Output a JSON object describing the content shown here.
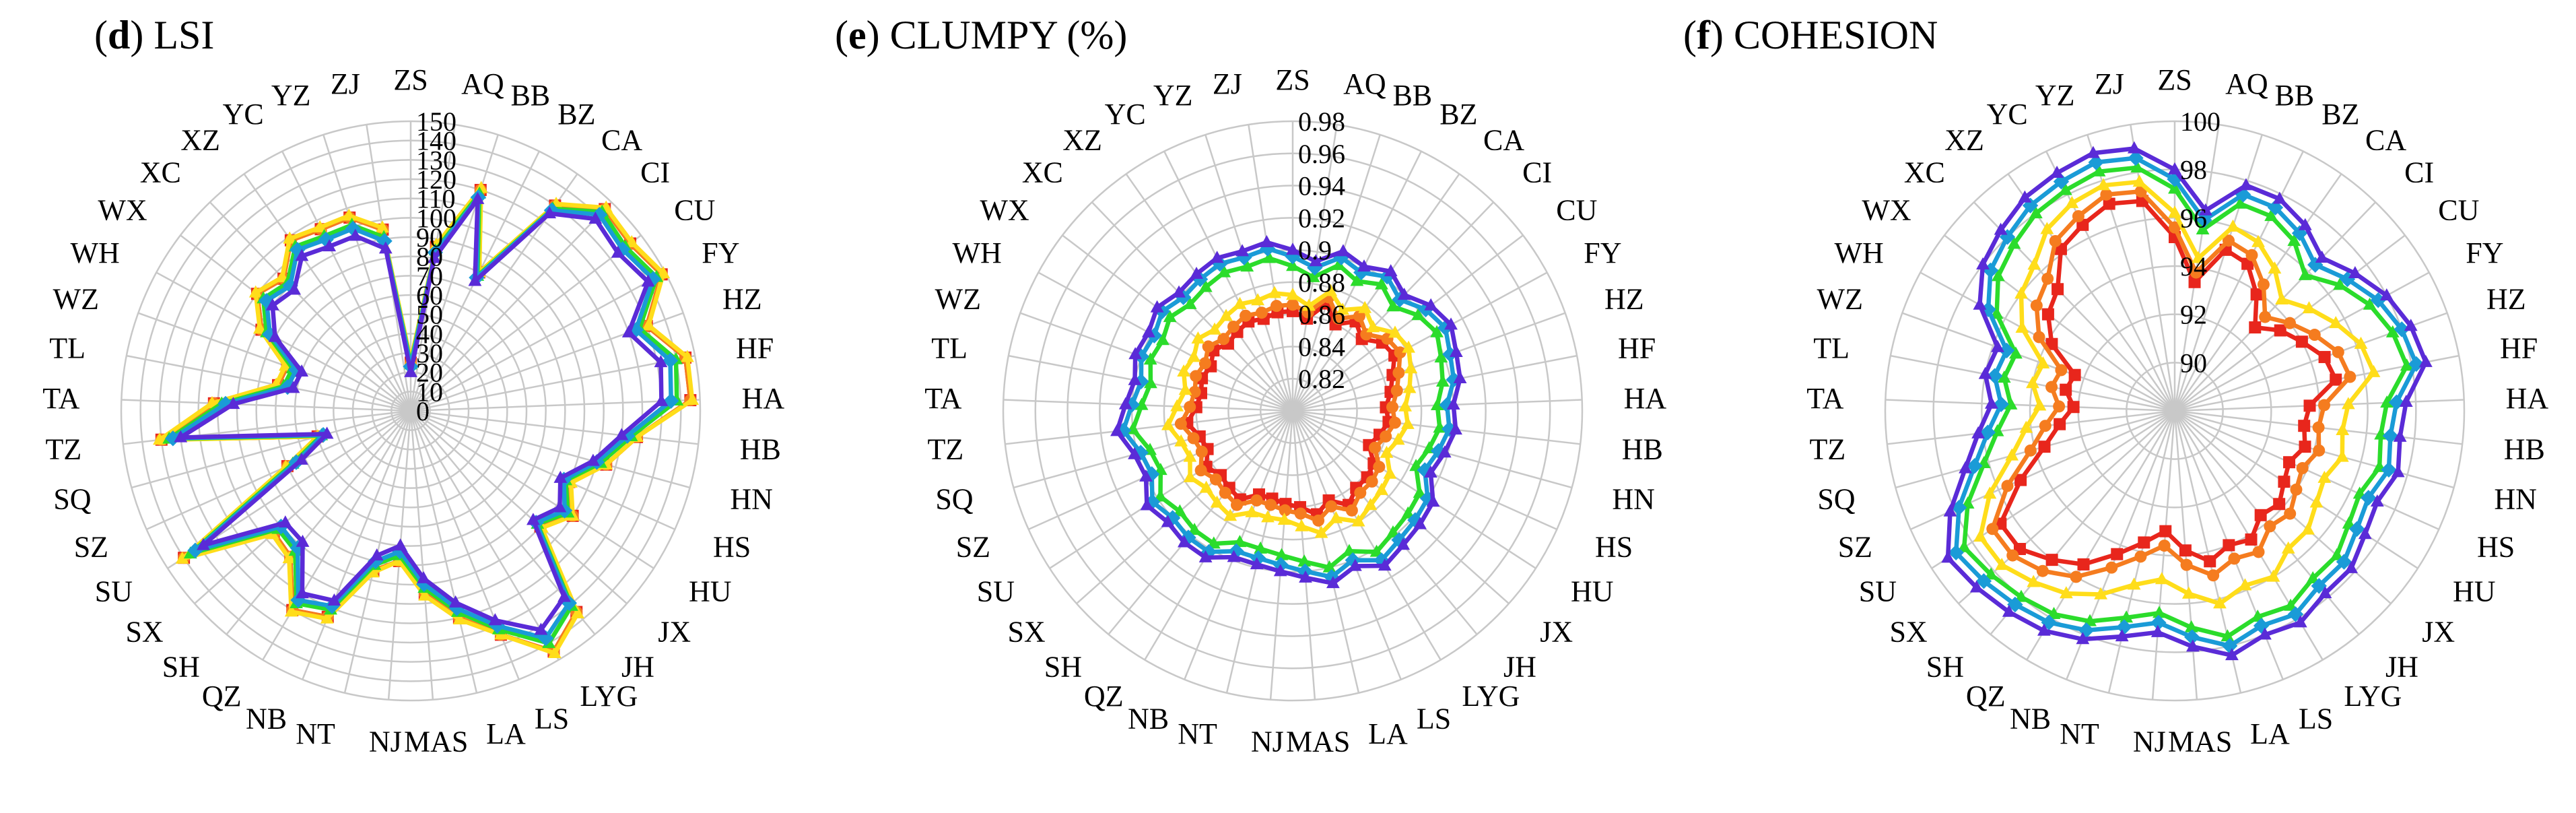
{
  "figure": {
    "title": ""
  },
  "chart_data": [
    {
      "type": "radar",
      "panel_letter": "(d)",
      "title": "LSI",
      "title_bold_part": "d",
      "rlim": [
        0,
        150
      ],
      "ticks": [
        "0",
        "10",
        "20",
        "30",
        "40",
        "50",
        "60",
        "70",
        "80",
        "90",
        "100",
        "110",
        "120",
        "130",
        "140",
        "150"
      ],
      "categories": [
        "ZS",
        "AQ",
        "BB",
        "BZ",
        "CA",
        "CI",
        "CU",
        "FY",
        "HZ",
        "HF",
        "HA",
        "HB",
        "HN",
        "HS",
        "HU",
        "JX",
        "JH",
        "LYG",
        "LS",
        "LA",
        "MAS",
        "NJ",
        "NT",
        "NB",
        "QZ",
        "SH",
        "SX",
        "SU",
        "SZ",
        "SQ",
        "TZ",
        "TA",
        "TL",
        "WZ",
        "WH",
        "WX",
        "XC",
        "XZ",
        "YC",
        "YZ",
        "ZJ"
      ],
      "series": [
        {
          "color": "#e8261c",
          "marker": "square",
          "values": [
            25,
            86,
            120,
            80,
            130,
            145,
            143,
            148,
            130,
            145,
            145,
            118,
            105,
            90,
            100,
            90,
            135,
            145,
            125,
            110,
            95,
            78,
            85,
            115,
            120,
            98,
            95,
            140,
            70,
            50,
            130,
            102,
            70,
            68,
            88,
            100,
            95,
            108,
            105,
            105,
            95
          ]
        },
        {
          "color": "#f57c1f",
          "marker": "circle",
          "values": [
            25,
            86,
            120,
            80,
            130,
            145,
            143,
            148,
            130,
            145,
            145,
            118,
            105,
            90,
            100,
            90,
            135,
            145,
            125,
            110,
            95,
            78,
            85,
            115,
            120,
            98,
            95,
            140,
            70,
            50,
            130,
            102,
            70,
            68,
            88,
            100,
            95,
            108,
            105,
            105,
            95
          ]
        },
        {
          "color": "#ffdd1a",
          "marker": "triangle",
          "values": [
            26,
            87,
            121,
            80,
            131,
            146,
            144,
            149,
            131,
            146,
            146,
            118,
            105,
            91,
            100,
            91,
            136,
            146,
            125,
            111,
            96,
            78,
            86,
            116,
            121,
            99,
            96,
            141,
            71,
            50,
            131,
            103,
            71,
            69,
            89,
            101,
            96,
            109,
            106,
            106,
            96
          ]
        },
        {
          "color": "#2bdc2b",
          "marker": "triangle",
          "values": [
            24,
            84,
            118,
            78,
            128,
            143,
            140,
            145,
            126,
            140,
            138,
            115,
            102,
            88,
            97,
            88,
            131,
            140,
            122,
            107,
            92,
            75,
            82,
            111,
            116,
            94,
            92,
            136,
            67,
            48,
            126,
            98,
            67,
            65,
            85,
            96,
            92,
            104,
            101,
            101,
            91
          ]
        },
        {
          "color": "#1a9bd7",
          "marker": "diamond",
          "values": [
            23,
            83,
            116,
            77,
            127,
            141,
            138,
            143,
            124,
            137,
            135,
            113,
            100,
            87,
            95,
            87,
            129,
            137,
            120,
            105,
            90,
            73,
            80,
            109,
            114,
            92,
            90,
            133,
            65,
            47,
            124,
            96,
            65,
            63,
            83,
            94,
            90,
            102,
            99,
            99,
            89
          ]
        },
        {
          "color": "#5a2bd7",
          "marker": "triangle",
          "values": [
            20,
            80,
            115,
            75,
            125,
            138,
            135,
            140,
            120,
            132,
            130,
            110,
            98,
            85,
            92,
            85,
            125,
            132,
            117,
            102,
            87,
            70,
            77,
            106,
            110,
            88,
            87,
            128,
            62,
            45,
            120,
            92,
            62,
            60,
            80,
            90,
            87,
            98,
            95,
            95,
            85
          ]
        }
      ]
    },
    {
      "type": "radar",
      "panel_letter": "(e)",
      "title": "CLUMPY (%)",
      "title_bold_part": "e",
      "rlim": [
        0.8,
        0.98
      ],
      "ticks": [
        "0.82",
        "0.84",
        "0.86",
        "0.88",
        "0.9",
        "0.92",
        "0.94",
        "0.96",
        "0.98"
      ],
      "categories": [
        "ZS",
        "AQ",
        "BB",
        "BZ",
        "CA",
        "CI",
        "CU",
        "FY",
        "HZ",
        "HF",
        "HA",
        "HB",
        "HN",
        "HS",
        "HU",
        "JX",
        "JH",
        "LYG",
        "LS",
        "LA",
        "MAS",
        "NJ",
        "NT",
        "NB",
        "QZ",
        "SH",
        "SX",
        "SU",
        "SZ",
        "SQ",
        "TZ",
        "TA",
        "TL",
        "WZ",
        "WH",
        "WX",
        "XC",
        "XZ",
        "YC",
        "YZ",
        "ZJ"
      ],
      "series": [
        {
          "color": "#e8261c",
          "marker": "square",
          "values": [
            0.862,
            0.858,
            0.87,
            0.86,
            0.868,
            0.862,
            0.87,
            0.872,
            0.866,
            0.862,
            0.858,
            0.86,
            0.856,
            0.852,
            0.86,
            0.862,
            0.862,
            0.868,
            0.86,
            0.866,
            0.86,
            0.858,
            0.856,
            0.856,
            0.864,
            0.862,
            0.86,
            0.864,
            0.858,
            0.86,
            0.866,
            0.86,
            0.858,
            0.86,
            0.858,
            0.862,
            0.858,
            0.86,
            0.862,
            0.86,
            0.862
          ]
        },
        {
          "color": "#f57c1f",
          "marker": "circle",
          "values": [
            0.866,
            0.862,
            0.874,
            0.864,
            0.872,
            0.866,
            0.874,
            0.876,
            0.87,
            0.866,
            0.862,
            0.864,
            0.86,
            0.856,
            0.864,
            0.866,
            0.866,
            0.872,
            0.864,
            0.87,
            0.864,
            0.862,
            0.86,
            0.86,
            0.868,
            0.866,
            0.864,
            0.868,
            0.862,
            0.864,
            0.87,
            0.864,
            0.862,
            0.864,
            0.862,
            0.866,
            0.862,
            0.864,
            0.866,
            0.864,
            0.866
          ]
        },
        {
          "color": "#ffdd1a",
          "marker": "triangle",
          "values": [
            0.872,
            0.866,
            0.878,
            0.87,
            0.878,
            0.872,
            0.88,
            0.882,
            0.878,
            0.874,
            0.87,
            0.872,
            0.868,
            0.864,
            0.872,
            0.874,
            0.876,
            0.88,
            0.872,
            0.878,
            0.872,
            0.868,
            0.868,
            0.868,
            0.876,
            0.874,
            0.872,
            0.876,
            0.87,
            0.872,
            0.878,
            0.872,
            0.868,
            0.872,
            0.87,
            0.874,
            0.87,
            0.872,
            0.874,
            0.872,
            0.874
          ]
        },
        {
          "color": "#2bdc2b",
          "marker": "triangle",
          "values": [
            0.89,
            0.884,
            0.895,
            0.89,
            0.896,
            0.89,
            0.898,
            0.902,
            0.898,
            0.895,
            0.89,
            0.892,
            0.888,
            0.884,
            0.894,
            0.896,
            0.898,
            0.902,
            0.894,
            0.9,
            0.894,
            0.89,
            0.888,
            0.888,
            0.896,
            0.896,
            0.894,
            0.898,
            0.89,
            0.892,
            0.9,
            0.894,
            0.89,
            0.894,
            0.892,
            0.896,
            0.892,
            0.894,
            0.896,
            0.894,
            0.896
          ]
        },
        {
          "color": "#1a9bd7",
          "marker": "diamond",
          "values": [
            0.896,
            0.89,
            0.9,
            0.896,
            0.902,
            0.896,
            0.904,
            0.908,
            0.904,
            0.902,
            0.896,
            0.898,
            0.894,
            0.89,
            0.9,
            0.902,
            0.904,
            0.908,
            0.9,
            0.906,
            0.9,
            0.896,
            0.894,
            0.894,
            0.902,
            0.902,
            0.9,
            0.904,
            0.896,
            0.898,
            0.906,
            0.9,
            0.896,
            0.9,
            0.898,
            0.902,
            0.898,
            0.9,
            0.902,
            0.9,
            0.902
          ]
        },
        {
          "color": "#5a2bd7",
          "marker": "triangle",
          "values": [
            0.9,
            0.894,
            0.904,
            0.9,
            0.906,
            0.9,
            0.908,
            0.912,
            0.908,
            0.906,
            0.9,
            0.902,
            0.898,
            0.894,
            0.904,
            0.906,
            0.908,
            0.912,
            0.904,
            0.91,
            0.904,
            0.9,
            0.898,
            0.898,
            0.906,
            0.906,
            0.904,
            0.908,
            0.9,
            0.902,
            0.91,
            0.904,
            0.9,
            0.904,
            0.902,
            0.906,
            0.902,
            0.904,
            0.906,
            0.904,
            0.906
          ]
        }
      ]
    },
    {
      "type": "radar",
      "panel_letter": "(f)",
      "title": "COHESION",
      "title_bold_part": "f",
      "rlim": [
        88,
        100
      ],
      "ticks": [
        "90",
        "92",
        "94",
        "96",
        "98",
        "100"
      ],
      "categories": [
        "ZS",
        "AQ",
        "BB",
        "BZ",
        "CA",
        "CI",
        "CU",
        "FY",
        "HZ",
        "HF",
        "HA",
        "HB",
        "HN",
        "HS",
        "HU",
        "JX",
        "JH",
        "LYG",
        "LS",
        "LA",
        "MAS",
        "NJ",
        "NT",
        "NB",
        "QZ",
        "SH",
        "SX",
        "SU",
        "SZ",
        "SQ",
        "TZ",
        "TA",
        "TL",
        "WZ",
        "WH",
        "WX",
        "XC",
        "XZ",
        "YC",
        "YZ",
        "ZJ"
      ],
      "series": [
        {
          "color": "#e8261c",
          "marker": "square",
          "values": [
            95.2,
            93.4,
            95.0,
            94.8,
            93.9,
            92.8,
            93.5,
            94.0,
            94.6,
            94.8,
            93.6,
            93.4,
            93.6,
            93.2,
            93.4,
            93.8,
            93.6,
            94.2,
            94.0,
            94.4,
            93.8,
            93.0,
            93.6,
            94.4,
            95.4,
            96.0,
            96.6,
            96.6,
            95.0,
            93.6,
            92.8,
            92.2,
            92.6,
            92.4,
            93.8,
            94.6,
            95.0,
            96.2,
            96.6,
            97.0,
            96.8
          ]
        },
        {
          "color": "#f57c1f",
          "marker": "circle",
          "values": [
            95.6,
            93.8,
            95.4,
            95.2,
            94.4,
            93.4,
            94.0,
            94.6,
            95.2,
            95.4,
            94.2,
            94.0,
            94.2,
            93.8,
            94.0,
            94.4,
            94.2,
            94.8,
            94.6,
            95.0,
            94.4,
            93.6,
            94.2,
            95.0,
            96.0,
            96.6,
            97.0,
            97.0,
            95.6,
            94.2,
            93.4,
            92.8,
            93.2,
            93.0,
            94.4,
            95.2,
            95.6,
            96.6,
            97.0,
            97.4,
            97.2
          ]
        },
        {
          "color": "#ffdd1a",
          "marker": "triangle",
          "values": [
            96.2,
            94.4,
            96.0,
            95.8,
            95.2,
            94.4,
            95.0,
            95.6,
            96.2,
            96.4,
            95.2,
            95.0,
            95.2,
            94.8,
            95.0,
            95.4,
            95.4,
            96.0,
            95.8,
            96.2,
            95.6,
            95.0,
            95.4,
            96.2,
            96.8,
            97.2,
            97.6,
            97.6,
            96.4,
            95.0,
            94.2,
            93.6,
            94.0,
            93.8,
            95.2,
            96.0,
            96.4,
            97.2,
            97.6,
            97.8,
            97.6
          ]
        },
        {
          "color": "#2bdc2b",
          "marker": "triangle",
          "values": [
            97.2,
            95.6,
            97.0,
            97.0,
            96.6,
            95.8,
            96.6,
            97.2,
            97.6,
            97.8,
            96.8,
            96.6,
            96.8,
            96.4,
            96.6,
            97.0,
            97.0,
            97.4,
            97.2,
            97.6,
            97.0,
            96.4,
            96.8,
            97.4,
            97.8,
            98.0,
            98.2,
            98.4,
            97.4,
            96.2,
            95.4,
            94.8,
            95.2,
            95.0,
            96.4,
            97.2,
            97.6,
            98.0,
            98.2,
            98.4,
            98.2
          ]
        },
        {
          "color": "#1a9bd7",
          "marker": "diamond",
          "values": [
            97.6,
            96.0,
            97.4,
            97.4,
            97.0,
            96.4,
            97.0,
            97.6,
            98.0,
            98.2,
            97.2,
            97.0,
            97.2,
            96.8,
            97.0,
            97.4,
            97.4,
            97.8,
            97.6,
            98.0,
            97.4,
            96.8,
            97.2,
            97.8,
            98.2,
            98.4,
            98.6,
            98.8,
            97.8,
            96.6,
            95.8,
            95.2,
            95.6,
            95.4,
            96.8,
            97.6,
            98.0,
            98.4,
            98.6,
            98.8,
            98.6
          ]
        },
        {
          "color": "#5a2bd7",
          "marker": "triangle",
          "values": [
            98.0,
            96.4,
            97.8,
            97.8,
            97.4,
            96.8,
            97.4,
            98.0,
            98.4,
            98.6,
            97.6,
            97.4,
            97.6,
            97.2,
            97.4,
            97.8,
            97.8,
            98.2,
            98.0,
            98.4,
            97.8,
            97.2,
            97.6,
            98.2,
            98.6,
            98.8,
            99.0,
            99.2,
            98.2,
            97.0,
            96.2,
            95.6,
            96.0,
            95.8,
            97.2,
            98.0,
            98.4,
            98.8,
            99.0,
            99.2,
            99.0
          ]
        }
      ]
    }
  ]
}
